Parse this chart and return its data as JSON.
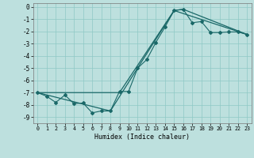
{
  "xlabel": "Humidex (Indice chaleur)",
  "xlim": [
    -0.5,
    23.5
  ],
  "ylim": [
    -9.5,
    0.3
  ],
  "yticks": [
    0,
    -1,
    -2,
    -3,
    -4,
    -5,
    -6,
    -7,
    -8,
    -9
  ],
  "xticks": [
    0,
    1,
    2,
    3,
    4,
    5,
    6,
    7,
    8,
    9,
    10,
    11,
    12,
    13,
    14,
    15,
    16,
    17,
    18,
    19,
    20,
    21,
    22,
    23
  ],
  "bg": "#bde0de",
  "grid_color": "#8fc8c5",
  "lc": "#1a6868",
  "line1_x": [
    0,
    1,
    2,
    3,
    4,
    5,
    6,
    7,
    8,
    9,
    10,
    11,
    12,
    13,
    14,
    15,
    16,
    17,
    18,
    19,
    20,
    21,
    22,
    23
  ],
  "line1_y": [
    -7.0,
    -7.3,
    -7.8,
    -7.2,
    -7.9,
    -7.85,
    -8.65,
    -8.5,
    -8.5,
    -6.9,
    -6.9,
    -5.0,
    -4.3,
    -2.9,
    -1.65,
    -0.3,
    -0.2,
    -1.3,
    -1.2,
    -2.1,
    -2.1,
    -2.05,
    -2.05,
    -2.25
  ],
  "line2_x": [
    0,
    9,
    15,
    23
  ],
  "line2_y": [
    -7.0,
    -7.0,
    -0.3,
    -2.25
  ],
  "line3_x": [
    0,
    8,
    15,
    16,
    23
  ],
  "line3_y": [
    -7.0,
    -8.5,
    -0.3,
    -0.2,
    -2.25
  ]
}
